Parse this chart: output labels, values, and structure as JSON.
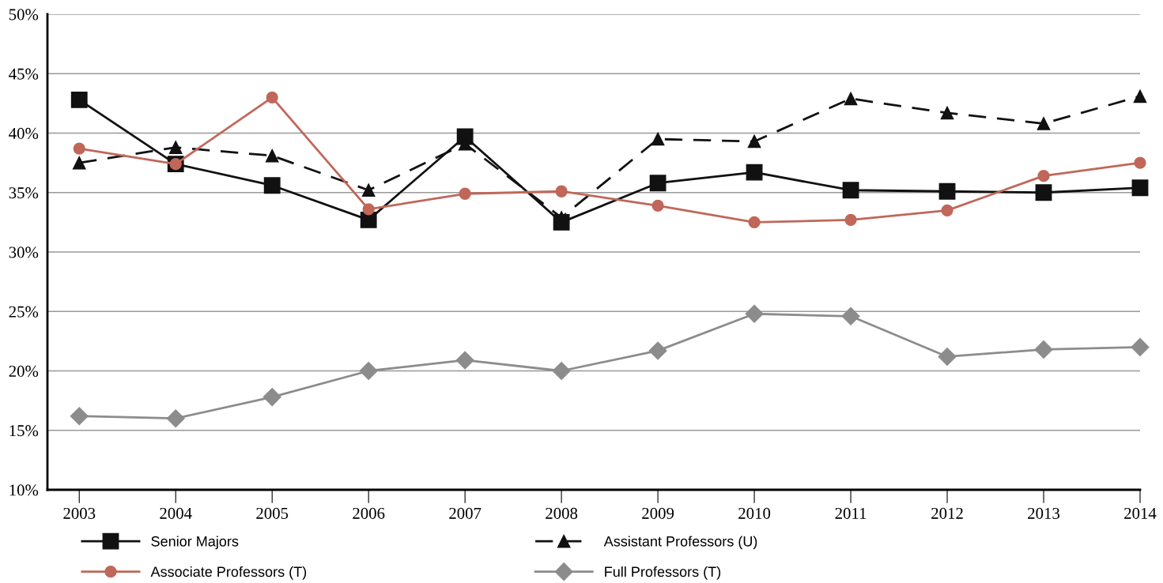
{
  "chart_data": {
    "type": "line",
    "categories": [
      "2003",
      "2004",
      "2005",
      "2006",
      "2007",
      "2008",
      "2009",
      "2010",
      "2011",
      "2012",
      "2013",
      "2014"
    ],
    "series": [
      {
        "name": "Senior Majors",
        "color": "#111111",
        "marker": "square",
        "line_style": "solid",
        "values": [
          42.8,
          37.4,
          35.6,
          32.7,
          39.7,
          32.5,
          35.8,
          36.7,
          35.2,
          35.1,
          35.0,
          35.4
        ]
      },
      {
        "name": "Assistant Professors (U)",
        "color": "#111111",
        "marker": "triangle",
        "line_style": "dashed",
        "values": [
          37.5,
          38.8,
          38.1,
          35.2,
          39.1,
          32.9,
          39.5,
          39.3,
          42.9,
          41.7,
          40.8,
          43.1
        ]
      },
      {
        "name": "Associate Professors (T)",
        "color": "#c0675a",
        "marker": "circle",
        "line_style": "solid",
        "values": [
          38.7,
          37.4,
          43.0,
          33.6,
          34.9,
          35.1,
          33.9,
          32.5,
          32.7,
          33.5,
          36.4,
          37.5
        ]
      },
      {
        "name": "Full Professors (T)",
        "color": "#8c8c8c",
        "marker": "diamond",
        "line_style": "solid",
        "values": [
          16.2,
          16.0,
          17.8,
          20.0,
          20.9,
          20.0,
          21.7,
          24.8,
          24.6,
          21.2,
          21.8,
          22.0
        ]
      }
    ],
    "ylim": [
      10,
      50
    ],
    "yticks": [
      {
        "value": 10,
        "label": "10%"
      },
      {
        "value": 15,
        "label": "15%"
      },
      {
        "value": 20,
        "label": "20%"
      },
      {
        "value": 25,
        "label": "25%"
      },
      {
        "value": 30,
        "label": "30%"
      },
      {
        "value": 35,
        "label": "35%"
      },
      {
        "value": 40,
        "label": "40%"
      },
      {
        "value": 45,
        "label": "45%"
      },
      {
        "value": 50,
        "label": "50%"
      }
    ],
    "grid": "y",
    "legend": "bottom"
  }
}
